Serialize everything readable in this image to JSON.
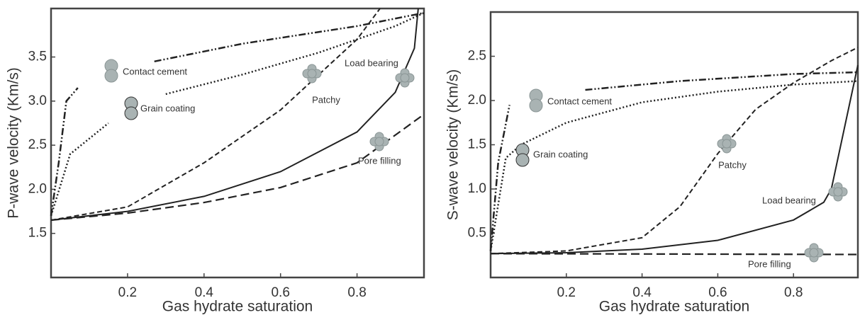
{
  "chart_data": [
    {
      "type": "line",
      "xlabel": "Gas hydrate saturation",
      "ylabel": "P-wave velocity (Km/s)",
      "xlim": [
        0,
        0.975
      ],
      "ylim": [
        1.0,
        4.05
      ],
      "xticks": [
        0.2,
        0.4,
        0.6,
        0.8
      ],
      "yticks": [
        1.5,
        {
          "value": 2,
          "label": "2.0"
        },
        2.5,
        {
          "value": 3,
          "label": "3.0"
        },
        3.5
      ],
      "series": [
        {
          "name": "Contact cement",
          "color": "#222222",
          "style": "dashdot",
          "x": [
            0,
            0.02,
            0.04,
            0.07,
            null,
            0.27,
            0.5,
            0.8,
            0.975
          ],
          "values": [
            1.7,
            2.3,
            3.0,
            3.15,
            null,
            3.45,
            3.65,
            3.85,
            4.0
          ]
        },
        {
          "name": "Grain coating",
          "color": "#222222",
          "style": "dotted",
          "x": [
            0,
            0.05,
            0.15,
            null,
            0.3,
            0.5,
            0.7,
            0.9,
            0.975
          ],
          "values": [
            1.7,
            2.4,
            2.75,
            null,
            3.08,
            3.3,
            3.55,
            3.85,
            4.0
          ]
        },
        {
          "name": "Patchy",
          "color": "#222222",
          "style": "dashed",
          "x": [
            0,
            0.2,
            0.4,
            0.6,
            0.7,
            0.8,
            0.86
          ],
          "values": [
            1.65,
            1.8,
            2.3,
            2.9,
            3.3,
            3.7,
            4.05
          ]
        },
        {
          "name": "Load bearing",
          "color": "#222222",
          "style": "solid",
          "x": [
            0,
            0.2,
            0.4,
            0.6,
            0.8,
            0.9,
            0.95,
            0.96
          ],
          "values": [
            1.65,
            1.75,
            1.92,
            2.2,
            2.65,
            3.1,
            3.6,
            4.05
          ]
        },
        {
          "name": "Pore filling",
          "color": "#222222",
          "style": "longdash",
          "x": [
            0,
            0.2,
            0.4,
            0.6,
            0.8,
            0.975
          ],
          "values": [
            1.65,
            1.73,
            1.85,
            2.02,
            2.3,
            2.85
          ]
        }
      ]
    },
    {
      "type": "line",
      "xlabel": "Gas hydrate saturation",
      "ylabel": "S-wave velocity (Km/s)",
      "xlim": [
        0,
        0.97
      ],
      "ylim": [
        0,
        3.0
      ],
      "xticks": [
        0.2,
        0.4,
        0.6,
        0.8
      ],
      "yticks": [
        0.5,
        {
          "value": 1,
          "label": "1.0"
        },
        1.5,
        {
          "value": 2,
          "label": "2.0"
        },
        2.5
      ],
      "series": [
        {
          "name": "Contact cement",
          "color": "#222222",
          "style": "dashdot",
          "x": [
            0,
            0.02,
            0.05,
            null,
            0.25,
            0.5,
            0.8,
            0.97
          ],
          "values": [
            0.3,
            1.3,
            1.95,
            null,
            2.12,
            2.22,
            2.3,
            2.32
          ]
        },
        {
          "name": "Grain coating",
          "color": "#222222",
          "style": "dotted",
          "x": [
            0,
            0.04,
            0.08,
            0.2,
            0.4,
            0.6,
            0.8,
            0.97
          ],
          "values": [
            0.3,
            1.35,
            1.5,
            1.75,
            1.98,
            2.1,
            2.18,
            2.22
          ]
        },
        {
          "name": "Patchy",
          "color": "#222222",
          "style": "dashed",
          "x": [
            0,
            0.2,
            0.4,
            0.5,
            0.6,
            0.7,
            0.8,
            0.9,
            0.97
          ],
          "values": [
            0.27,
            0.3,
            0.45,
            0.8,
            1.4,
            1.9,
            2.2,
            2.45,
            2.6
          ]
        },
        {
          "name": "Load bearing",
          "color": "#222222",
          "style": "solid",
          "x": [
            0,
            0.2,
            0.4,
            0.6,
            0.8,
            0.88,
            0.9,
            0.97
          ],
          "values": [
            0.27,
            0.28,
            0.32,
            0.42,
            0.65,
            0.85,
            1.0,
            2.4
          ]
        },
        {
          "name": "Pore filling",
          "color": "#222222",
          "style": "longdash",
          "x": [
            0,
            0.97
          ],
          "values": [
            0.27,
            0.26
          ]
        }
      ]
    }
  ]
}
